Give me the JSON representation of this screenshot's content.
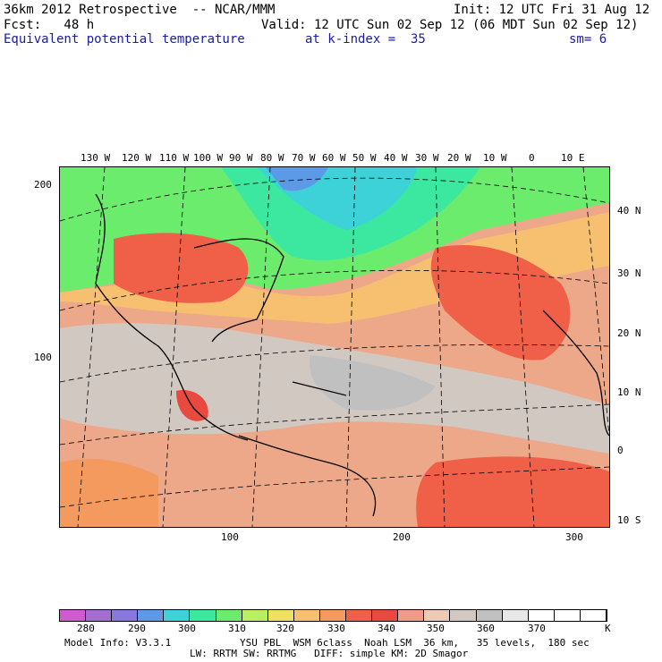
{
  "header": {
    "line1_left": "36km 2012 Retrospective  -- NCAR/MMM",
    "line1_right": "Init: 12 UTC Fri 31 Aug 12",
    "line2_left": "Fcst:   48 h",
    "line2_right": "Valid: 12 UTC Sun 02 Sep 12 (06 MDT Sun 02 Sep 12)",
    "line3_field": "Equivalent potential temperature",
    "line3_level": "at k-index =  35",
    "line3_sm": "sm= 6"
  },
  "map": {
    "top_lon_labels": [
      "130 W",
      "120 W",
      "110 W",
      "100 W",
      "90 W",
      "80 W",
      "70 W",
      "60 W",
      "50 W",
      "40 W",
      "30 W",
      "20 W",
      "10 W",
      "0",
      "10 E"
    ],
    "right_lat_labels": [
      "40 N",
      "30 N",
      "20 N",
      "10 N",
      "0",
      "10 S"
    ],
    "left_grid_labels": [
      "200",
      "100"
    ],
    "bottom_grid_labels": [
      "100",
      "200",
      "300"
    ]
  },
  "colorbar": {
    "colors": [
      "#d05ad0",
      "#a46ed0",
      "#8a78e0",
      "#5c9ae8",
      "#3cd2d8",
      "#3ce8a0",
      "#6cec6c",
      "#b8f060",
      "#f0e060",
      "#f6c070",
      "#f49a5e",
      "#f06048",
      "#e84a40",
      "#f09c88",
      "#eccab4",
      "#d2c8c2",
      "#c0c0c0",
      "#e8e8e8",
      "#ffffff",
      "#ffffff",
      "#ffffff"
    ],
    "labels": [
      "280",
      "290",
      "300",
      "310",
      "320",
      "330",
      "340",
      "350",
      "360",
      "370"
    ],
    "unit": "K"
  },
  "footer": {
    "line1_left": "Model Info: V3.3.1",
    "line1_right": "YSU PBL  WSM 6class  Noah LSM  36 km,   35 levels,  180 sec",
    "line2": "LW: RRTM SW: RRTMG   DIFF: simple KM: 2D Smagor"
  }
}
